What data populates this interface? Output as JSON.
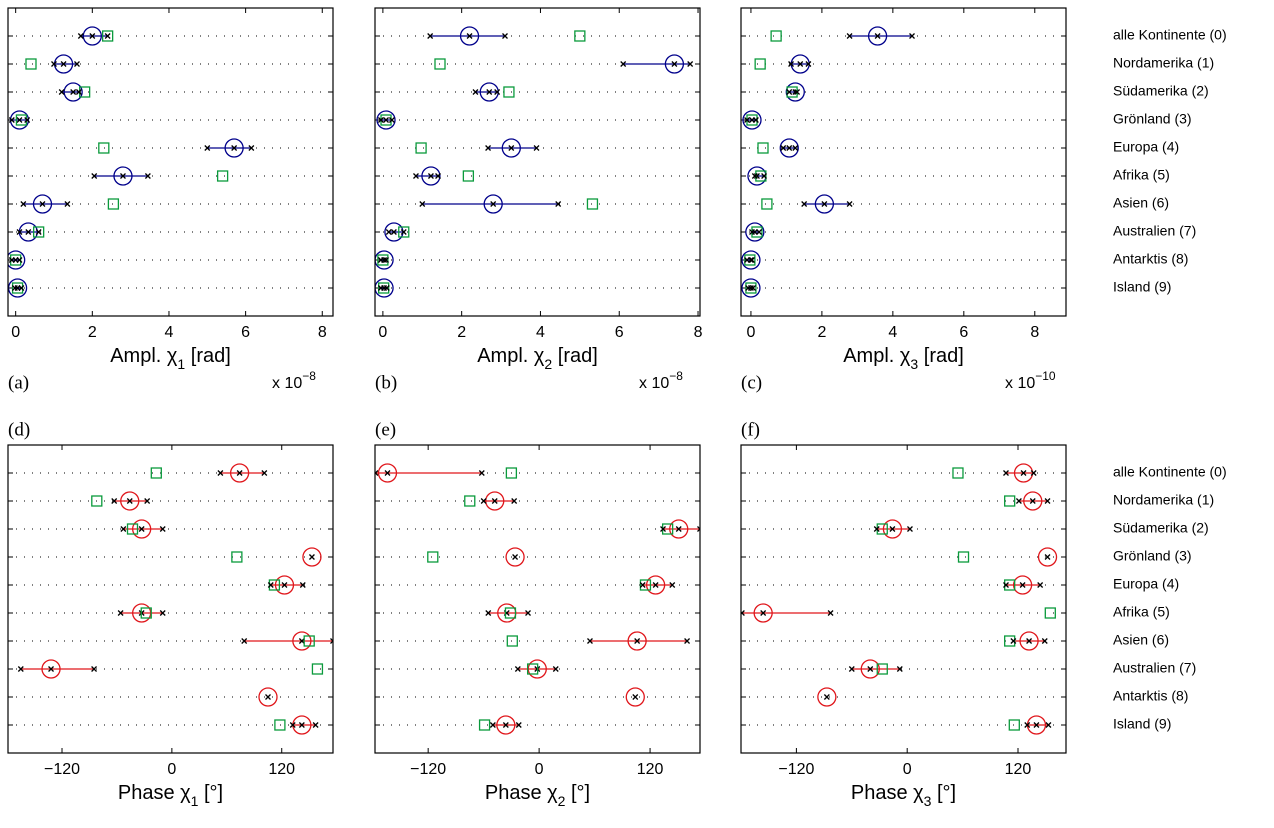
{
  "chart_data": [
    {
      "type": "dot",
      "panel_label": "(a)",
      "xlabel": [
        "Ampl. χ",
        "1",
        " [rad]"
      ],
      "multiplier": [
        "x 10",
        "−8"
      ],
      "xlim": [
        -0.2,
        8.28
      ],
      "xticks": [
        0,
        2,
        4,
        6,
        8
      ],
      "grid": true,
      "whisker_color": "#00008b",
      "series": [
        {
          "marker": "circle",
          "color": "#00008b",
          "values": [
            2.0,
            1.25,
            1.5,
            0.1,
            5.7,
            2.8,
            0.7,
            0.33,
            0,
            0.05
          ]
        },
        {
          "marker": "square",
          "color": "#0a9a3c",
          "values": [
            2.4,
            0.4,
            1.8,
            0.15,
            2.3,
            5.4,
            2.55,
            0.6,
            0,
            0.05
          ]
        },
        {
          "marker": "cross",
          "color": "#000000",
          "values": [
            1.7,
            1.0,
            1.2,
            -0.1,
            5.0,
            2.05,
            0.2,
            0.1,
            -0.1,
            -0.02
          ]
        },
        {
          "marker": "cross",
          "color": "#000000",
          "values": [
            2.4,
            1.6,
            1.65,
            0.3,
            6.15,
            3.45,
            1.35,
            0.6,
            0.1,
            0.15
          ]
        }
      ]
    },
    {
      "type": "dot",
      "panel_label": "(b)",
      "xlabel": [
        "Ampl. χ",
        "2",
        " [rad]"
      ],
      "multiplier": [
        "x 10",
        "−8"
      ],
      "xlim": [
        -0.2,
        8.05
      ],
      "xticks": [
        0,
        2,
        4,
        6,
        8
      ],
      "grid": true,
      "whisker_color": "#00008b",
      "series": [
        {
          "marker": "circle",
          "color": "#00008b",
          "values": [
            2.2,
            7.4,
            2.7,
            0.08,
            3.26,
            1.22,
            2.8,
            0.28,
            0.03,
            0.03
          ]
        },
        {
          "marker": "square",
          "color": "#0a9a3c",
          "values": [
            5.0,
            1.45,
            3.2,
            0.08,
            0.97,
            2.17,
            5.32,
            0.53,
            0,
            0.02
          ]
        },
        {
          "marker": "cross",
          "color": "#000000",
          "values": [
            1.2,
            6.1,
            2.35,
            -0.05,
            2.67,
            0.84,
            1.0,
            0.15,
            -0.05,
            -0.05
          ]
        },
        {
          "marker": "cross",
          "color": "#000000",
          "values": [
            3.1,
            7.8,
            2.9,
            0.23,
            3.9,
            1.4,
            4.45,
            0.53,
            0.08,
            0.1
          ]
        }
      ]
    },
    {
      "type": "dot",
      "panel_label": "(c)",
      "xlabel": [
        "Ampl. χ",
        "3",
        " [rad]"
      ],
      "multiplier": [
        "x 10",
        "−10"
      ],
      "xlim": [
        -0.28,
        8.88
      ],
      "xticks": [
        0,
        2,
        4,
        6,
        8
      ],
      "grid": true,
      "whisker_color": "#00008b",
      "categories": [
        "alle Kontinente (0)",
        "Nordamerika (1)",
        "Südamerika (2)",
        "Grönland (3)",
        "Europa (4)",
        "Afrika (5)",
        "Asien (6)",
        "Australien (7)",
        "Antarktis (8)",
        "Island (9)"
      ],
      "series": [
        {
          "marker": "circle",
          "color": "#00008b",
          "values": [
            3.57,
            1.39,
            1.25,
            0.03,
            1.08,
            0.17,
            2.07,
            0.11,
            0,
            0
          ]
        },
        {
          "marker": "square",
          "color": "#0a9a3c",
          "values": [
            0.71,
            0.26,
            1.16,
            0.03,
            0.34,
            0.28,
            0.45,
            0.17,
            -0.03,
            0
          ]
        },
        {
          "marker": "cross",
          "color": "#000000",
          "values": [
            2.78,
            1.13,
            1.08,
            -0.11,
            0.91,
            0.11,
            1.5,
            0.03,
            -0.11,
            -0.08
          ]
        },
        {
          "marker": "cross",
          "color": "#000000",
          "values": [
            4.54,
            1.62,
            1.3,
            0.14,
            1.25,
            0.37,
            2.78,
            0.23,
            0.03,
            0.06
          ]
        }
      ]
    },
    {
      "type": "dot",
      "panel_label": "(d)",
      "xlabel": [
        "Phase χ",
        "1",
        " [°]"
      ],
      "xlim": [
        -179,
        176
      ],
      "xticks": [
        {
          "value": -120,
          "label": "−120"
        },
        0,
        120
      ],
      "grid": true,
      "whisker_color": "#e0161b",
      "series": [
        {
          "marker": "circle",
          "color": "#e0161b",
          "values": [
            74,
            -46,
            -33,
            153,
            123,
            -33,
            142,
            -132,
            105,
            142
          ]
        },
        {
          "marker": "square",
          "color": "#0a9a3c",
          "values": [
            -17,
            -82,
            -43,
            71,
            112,
            -28,
            150,
            159,
            null,
            118
          ]
        },
        {
          "marker": "cross",
          "color": "#000000",
          "values": [
            53,
            -63,
            -53,
            null,
            108,
            -56,
            79,
            -165,
            null,
            132
          ]
        },
        {
          "marker": "cross",
          "color": "#000000",
          "values": [
            101,
            -27,
            -10,
            null,
            143,
            -10,
            176,
            -85,
            null,
            157
          ]
        }
      ]
    },
    {
      "type": "dot",
      "panel_label": "(e)",
      "xlabel": [
        "Phase χ",
        "2",
        " [°]"
      ],
      "xlim": [
        -177.5,
        174
      ],
      "xticks": [
        {
          "value": -120,
          "label": "−120"
        },
        0,
        120
      ],
      "grid": true,
      "whisker_color": "#e0161b",
      "series": [
        {
          "marker": "circle",
          "color": "#e0161b",
          "values": [
            -164,
            -48,
            151,
            -26,
            126,
            -35,
            106,
            -2,
            104,
            -36
          ]
        },
        {
          "marker": "square",
          "color": "#0a9a3c",
          "values": [
            -30,
            -75,
            139,
            -115,
            115,
            -31,
            -29,
            -7,
            null,
            -59
          ]
        },
        {
          "marker": "cross",
          "color": "#000000",
          "values": [
            -177,
            -60,
            134,
            null,
            112,
            -55,
            55,
            -23,
            null,
            -50
          ]
        },
        {
          "marker": "cross",
          "color": "#000000",
          "values": [
            -62,
            -27,
            174,
            null,
            144,
            -12,
            160,
            18,
            null,
            -22
          ]
        }
      ]
    },
    {
      "type": "dot",
      "panel_label": "(f)",
      "xlabel": [
        "Phase χ",
        "3",
        " [°]"
      ],
      "xlim": [
        -180,
        172
      ],
      "xticks": [
        {
          "value": -120,
          "label": "−120"
        },
        0,
        120
      ],
      "grid": true,
      "whisker_color": "#e0161b",
      "categories": [
        "alle Kontinente (0)",
        "Nordamerika (1)",
        "Südamerika (2)",
        "Grönland (3)",
        "Europa (4)",
        "Afrika (5)",
        "Asien (6)",
        "Australien (7)",
        "Antarktis (8)",
        "Island (9)"
      ],
      "series": [
        {
          "marker": "circle",
          "color": "#e0161b",
          "values": [
            126,
            136,
            -16,
            152,
            125,
            -156,
            132,
            -40,
            -87,
            140
          ]
        },
        {
          "marker": "square",
          "color": "#0a9a3c",
          "values": [
            55,
            111,
            -27,
            61,
            111,
            155,
            111,
            -27,
            null,
            116
          ]
        },
        {
          "marker": "cross",
          "color": "#000000",
          "values": [
            107,
            121,
            -33,
            null,
            107,
            -179,
            115,
            -60,
            null,
            130
          ]
        },
        {
          "marker": "cross",
          "color": "#000000",
          "values": [
            137,
            152,
            3,
            null,
            144,
            -83,
            149,
            -8,
            null,
            153
          ]
        }
      ]
    }
  ]
}
